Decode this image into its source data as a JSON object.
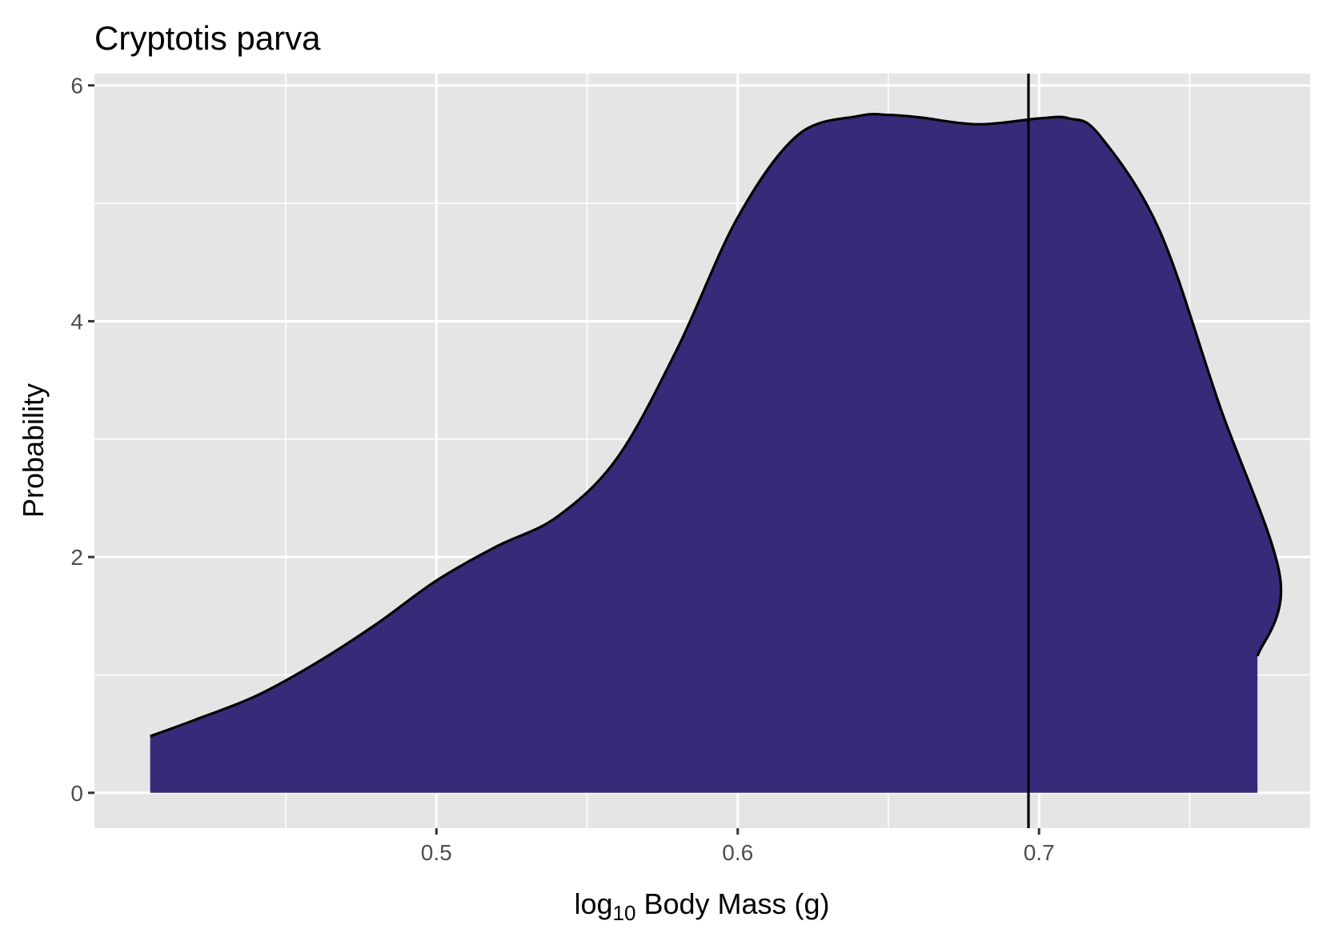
{
  "chart_data": {
    "type": "area",
    "title": "Cryptotis parva",
    "xlabel_prefix": "log",
    "xlabel_subscript": "10",
    "xlabel_suffix": " Body Mass (g)",
    "ylabel": "Probability",
    "xlim": [
      0.3865,
      0.79
    ],
    "ylim": [
      -0.3,
      6.1
    ],
    "x_ticks": [
      0.5,
      0.6,
      0.7
    ],
    "x_tick_labels": [
      "0.5",
      "0.6",
      "0.7"
    ],
    "x_minor_ticks": [
      0.45,
      0.55,
      0.65,
      0.75
    ],
    "y_ticks": [
      0,
      2,
      4,
      6
    ],
    "y_tick_labels": [
      "0",
      "2",
      "4",
      "6"
    ],
    "y_minor_ticks": [
      1,
      3,
      5
    ],
    "grid": true,
    "panel_color": "#E5E5E5",
    "fill_color": "#372B79",
    "line_color": "#000000",
    "series": [
      {
        "x": [
          0.405,
          0.42,
          0.44,
          0.46,
          0.48,
          0.5,
          0.52,
          0.54,
          0.56,
          0.58,
          0.6,
          0.62,
          0.64,
          0.65,
          0.66,
          0.68,
          0.7,
          0.71,
          0.72,
          0.74,
          0.76,
          0.78,
          0.7725
        ],
        "y": [
          0.48,
          0.62,
          0.82,
          1.1,
          1.43,
          1.8,
          2.09,
          2.34,
          2.84,
          3.77,
          4.88,
          5.58,
          5.74,
          5.75,
          5.73,
          5.67,
          5.72,
          5.72,
          5.58,
          4.77,
          3.28,
          1.83,
          1.16
        ]
      }
    ],
    "vline_x": 0.6965
  }
}
